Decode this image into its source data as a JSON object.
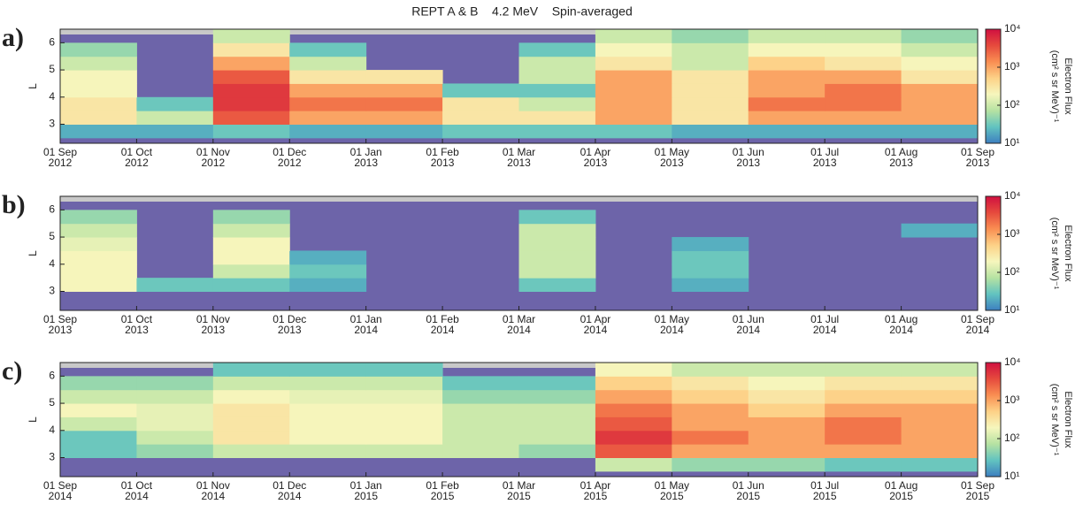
{
  "chart_data": [
    {
      "type": "heatmap",
      "title": "REPT A & B    4.2 MeV    Spin-averaged",
      "label": "a)",
      "ylabel": "L",
      "xticks": [
        "01 Sep 2012",
        "01 Oct 2012",
        "01 Nov 2012",
        "01 Dec 2012",
        "01 Jan 2013",
        "01 Feb 2013",
        "01 Mar 2013",
        "01 Apr 2013",
        "01 May 2013",
        "01 Jun 2013",
        "01 Jul 2013",
        "01 Aug 2013",
        "01 Sep 2013"
      ],
      "y": [
        2.75,
        3.25,
        3.75,
        4.25,
        4.75,
        5.25,
        5.75,
        6.25
      ],
      "ylim": [
        2.3,
        6.5
      ],
      "yticks": [
        3,
        4,
        5,
        6
      ],
      "z": [
        [
          20,
          20,
          30,
          20,
          20,
          30,
          30,
          30,
          20,
          20,
          20,
          20
        ],
        [
          300,
          100,
          3000,
          1000,
          1000,
          300,
          300,
          1000,
          300,
          1000,
          1000,
          1000
        ],
        [
          300,
          30,
          5000,
          2000,
          2000,
          300,
          100,
          1000,
          300,
          2000,
          2000,
          1000
        ],
        [
          200,
          null,
          5000,
          1000,
          1000,
          30,
          30,
          1000,
          300,
          1000,
          2000,
          1000
        ],
        [
          200,
          null,
          3000,
          300,
          300,
          null,
          100,
          1000,
          300,
          1000,
          1000,
          300
        ],
        [
          100,
          null,
          1000,
          100,
          null,
          null,
          100,
          300,
          100,
          500,
          300,
          200
        ],
        [
          50,
          null,
          300,
          30,
          null,
          null,
          30,
          200,
          100,
          200,
          200,
          100
        ],
        [
          null,
          null,
          100,
          null,
          null,
          null,
          null,
          100,
          50,
          100,
          100,
          50
        ]
      ],
      "zlabel": "Electron Flux",
      "zunit": "(cm² s sr MeV)⁻¹",
      "zlog": true,
      "zlim": [
        10,
        10000
      ],
      "zticks": [
        {
          "value": 10,
          "label": "10¹"
        },
        {
          "value": 100,
          "label": "10²"
        },
        {
          "value": 1000,
          "label": "10³"
        },
        {
          "value": 10000,
          "label": "10⁴"
        }
      ],
      "colormap": [
        "#3d7fc0",
        "#62c3c0",
        "#b6e2a2",
        "#f6f6bd",
        "#fdd187",
        "#f98e52",
        "#e64a3d",
        "#d01040"
      ],
      "background": "#6d64a9"
    },
    {
      "type": "heatmap",
      "label": "b)",
      "ylabel": "L",
      "xticks": [
        "01 Sep 2013",
        "01 Oct 2013",
        "01 Nov 2013",
        "01 Dec 2013",
        "01 Jan 2014",
        "01 Feb 2014",
        "01 Mar 2014",
        "01 Apr 2014",
        "01 May 2014",
        "01 Jun 2014",
        "01 Jul 2014",
        "01 Aug 2014",
        "01 Sep 2014"
      ],
      "y": [
        2.75,
        3.25,
        3.75,
        4.25,
        4.75,
        5.25,
        5.75,
        6.25
      ],
      "ylim": [
        2.3,
        6.5
      ],
      "yticks": [
        3,
        4,
        5,
        6
      ],
      "z": [
        [
          null,
          null,
          null,
          null,
          null,
          null,
          null,
          null,
          null,
          null,
          null,
          null
        ],
        [
          200,
          30,
          30,
          20,
          null,
          null,
          30,
          null,
          20,
          null,
          null,
          null
        ],
        [
          200,
          null,
          100,
          30,
          null,
          null,
          100,
          null,
          30,
          null,
          null,
          null
        ],
        [
          200,
          null,
          200,
          20,
          null,
          null,
          100,
          null,
          30,
          null,
          null,
          null
        ],
        [
          150,
          null,
          200,
          null,
          null,
          null,
          100,
          null,
          20,
          null,
          null,
          null
        ],
        [
          100,
          null,
          100,
          null,
          null,
          null,
          100,
          null,
          null,
          null,
          null,
          20
        ],
        [
          50,
          null,
          50,
          null,
          null,
          null,
          30,
          null,
          null,
          null,
          null,
          null
        ],
        [
          null,
          null,
          null,
          null,
          null,
          null,
          null,
          null,
          null,
          null,
          null,
          null
        ]
      ],
      "zlabel": "Electron Flux",
      "zunit": "(cm² s sr MeV)⁻¹",
      "zlog": true,
      "zlim": [
        10,
        10000
      ],
      "zticks": [
        {
          "value": 10,
          "label": "10¹"
        },
        {
          "value": 100,
          "label": "10²"
        },
        {
          "value": 1000,
          "label": "10³"
        },
        {
          "value": 10000,
          "label": "10⁴"
        }
      ],
      "colormap": [
        "#3d7fc0",
        "#62c3c0",
        "#b6e2a2",
        "#f6f6bd",
        "#fdd187",
        "#f98e52",
        "#e64a3d",
        "#d01040"
      ],
      "background": "#6d64a9"
    },
    {
      "type": "heatmap",
      "label": "c)",
      "ylabel": "L",
      "xticks": [
        "01 Sep 2014",
        "01 Oct 2014",
        "01 Nov 2014",
        "01 Dec 2014",
        "01 Jan 2015",
        "01 Feb 2015",
        "01 Mar 2015",
        "01 Apr 2015",
        "01 May 2015",
        "01 Jun 2015",
        "01 Jul 2015",
        "01 Aug 2015",
        "01 Sep 2015"
      ],
      "y": [
        2.75,
        3.25,
        3.75,
        4.25,
        4.75,
        5.25,
        5.75,
        6.25
      ],
      "ylim": [
        2.3,
        6.5
      ],
      "yticks": [
        3,
        4,
        5,
        6
      ],
      "z": [
        [
          null,
          null,
          null,
          null,
          null,
          null,
          null,
          100,
          50,
          50,
          30,
          30
        ],
        [
          30,
          50,
          100,
          100,
          100,
          100,
          50,
          3000,
          1000,
          1000,
          1000,
          1000
        ],
        [
          30,
          100,
          300,
          200,
          200,
          100,
          100,
          5000,
          2000,
          1000,
          2000,
          1000
        ],
        [
          100,
          150,
          300,
          200,
          200,
          100,
          100,
          3000,
          1000,
          1000,
          2000,
          1000
        ],
        [
          200,
          150,
          300,
          200,
          200,
          100,
          100,
          2000,
          1000,
          500,
          1000,
          1000
        ],
        [
          100,
          100,
          200,
          150,
          150,
          50,
          50,
          1000,
          500,
          300,
          500,
          500
        ],
        [
          50,
          50,
          100,
          100,
          100,
          30,
          30,
          500,
          300,
          200,
          300,
          300
        ],
        [
          null,
          null,
          30,
          30,
          30,
          null,
          null,
          200,
          100,
          100,
          100,
          100
        ]
      ],
      "zlabel": "Electron Flux",
      "zunit": "(cm² s sr MeV)⁻¹",
      "zlog": true,
      "zlim": [
        10,
        10000
      ],
      "zticks": [
        {
          "value": 10,
          "label": "10¹"
        },
        {
          "value": 100,
          "label": "10²"
        },
        {
          "value": 1000,
          "label": "10³"
        },
        {
          "value": 10000,
          "label": "10⁴"
        }
      ],
      "colormap": [
        "#3d7fc0",
        "#62c3c0",
        "#b6e2a2",
        "#f6f6bd",
        "#fdd187",
        "#f98e52",
        "#e64a3d",
        "#d01040"
      ],
      "background": "#6d64a9"
    }
  ]
}
